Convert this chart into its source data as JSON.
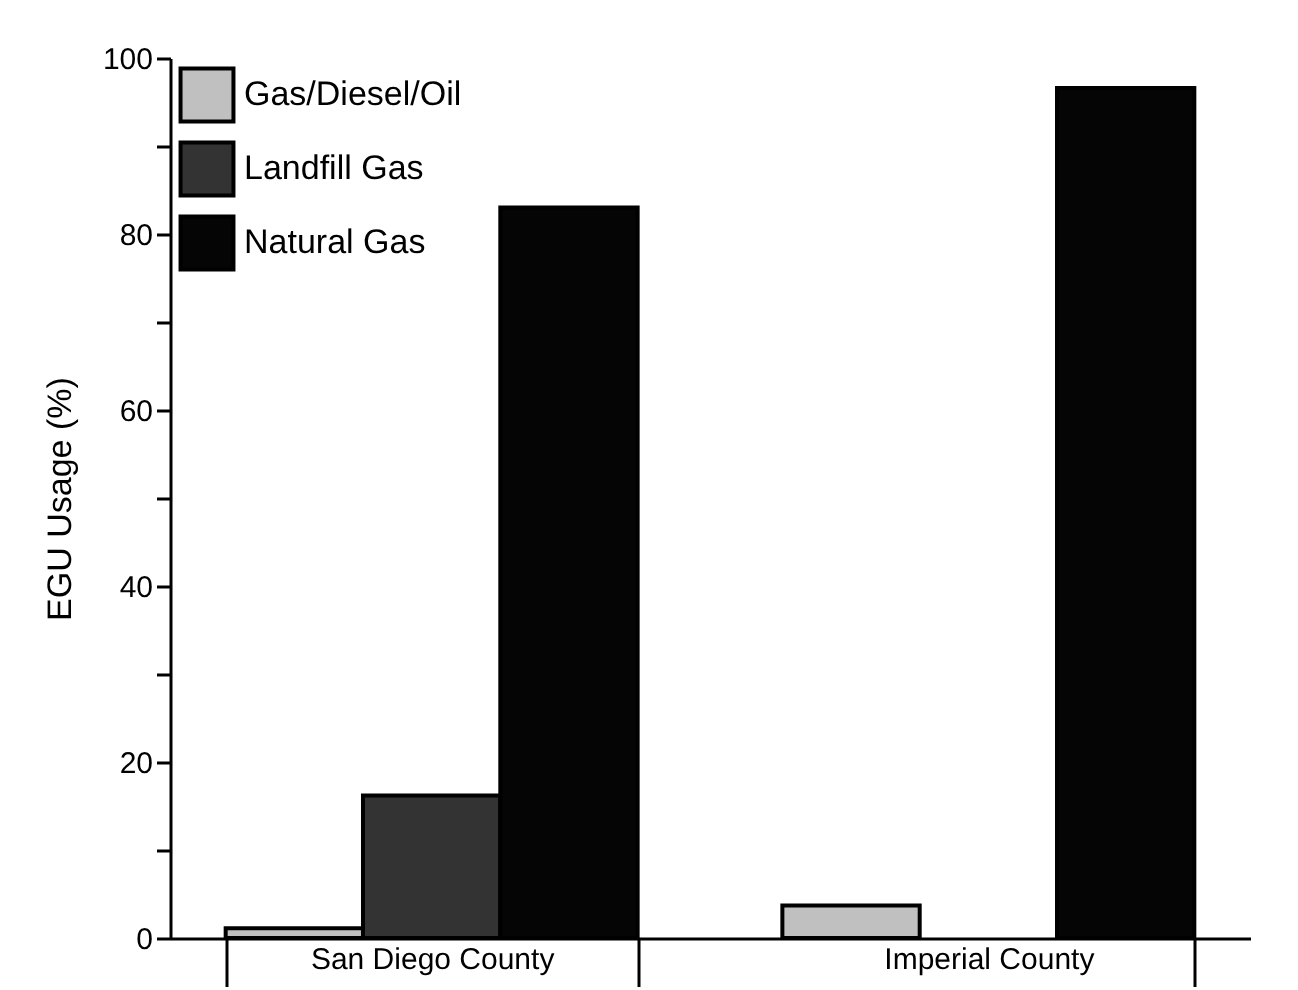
{
  "chart_data": {
    "type": "bar",
    "ylabel": "EGU Usage (%)",
    "categories": [
      "San Diego County",
      "Imperial County"
    ],
    "series": [
      {
        "name": "Gas/Diesel/Oil",
        "color": "#c0c0c0",
        "values": [
          1.1,
          3.7
        ]
      },
      {
        "name": "Landfill Gas",
        "color": "#333333",
        "values": [
          16.2,
          null
        ]
      },
      {
        "name": "Natural Gas",
        "color": "#050505",
        "values": [
          83,
          96.6
        ]
      }
    ],
    "ylim": [
      0,
      100
    ],
    "yticks": [
      0,
      {
        "value": 10,
        "label": null
      },
      20,
      {
        "value": 30,
        "label": null
      },
      40,
      {
        "value": 50,
        "label": null
      },
      60,
      {
        "value": 70,
        "label": null
      },
      80,
      {
        "value": 90,
        "label": null
      },
      100
    ],
    "grid": false,
    "legend": "top left"
  }
}
